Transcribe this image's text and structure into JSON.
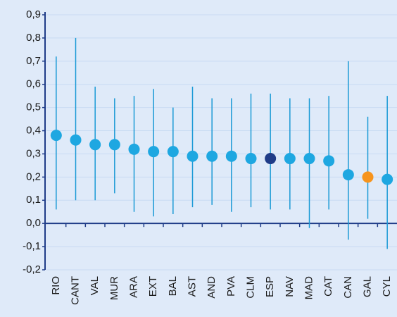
{
  "chart_data": {
    "type": "errorbar",
    "categories": [
      "RIO",
      "CANT",
      "VAL",
      "MUR",
      "ARA",
      "EXT",
      "BAL",
      "AST",
      "AND",
      "PVA",
      "CLM",
      "ESP",
      "NAV",
      "MAD",
      "CAT",
      "CAN",
      "GAL",
      "CYL"
    ],
    "values": [
      0.38,
      0.36,
      0.34,
      0.34,
      0.32,
      0.31,
      0.31,
      0.29,
      0.29,
      0.29,
      0.28,
      0.28,
      0.28,
      0.28,
      0.27,
      0.21,
      0.2,
      0.19
    ],
    "lows": [
      0.06,
      0.1,
      0.1,
      0.13,
      0.05,
      0.03,
      0.04,
      0.07,
      0.08,
      0.05,
      0.07,
      0.06,
      0.06,
      -0.02,
      0.06,
      -0.07,
      0.02,
      -0.11
    ],
    "highs": [
      0.72,
      0.8,
      0.59,
      0.54,
      0.55,
      0.58,
      0.5,
      0.59,
      0.54,
      0.54,
      0.56,
      0.56,
      0.54,
      0.54,
      0.55,
      0.7,
      0.46,
      0.55
    ],
    "colors": [
      "#1ea7e1",
      "#1ea7e1",
      "#1ea7e1",
      "#1ea7e1",
      "#1ea7e1",
      "#1ea7e1",
      "#1ea7e1",
      "#1ea7e1",
      "#1ea7e1",
      "#1ea7e1",
      "#1ea7e1",
      "#1f3c88",
      "#1ea7e1",
      "#1ea7e1",
      "#1ea7e1",
      "#1ea7e1",
      "#f7941d",
      "#1ea7e1"
    ],
    "range_color": "#1b9ad6",
    "ylim": [
      -0.2,
      0.9
    ],
    "yticks": [
      {
        "value": -0.2,
        "label": "-0,2"
      },
      {
        "value": -0.1,
        "label": "-0,1"
      },
      {
        "value": 0,
        "label": "0,0"
      },
      {
        "value": 0.1,
        "label": "0,1"
      },
      {
        "value": 0.2,
        "label": "0,2"
      },
      {
        "value": 0.3,
        "label": "0,3"
      },
      {
        "value": 0.4,
        "label": "0,4"
      },
      {
        "value": 0.5,
        "label": "0,5"
      },
      {
        "value": 0.6,
        "label": "0,6"
      },
      {
        "value": 0.7,
        "label": "0,7"
      },
      {
        "value": 0.8,
        "label": "0,8"
      },
      {
        "value": 0.9,
        "label": "0,9"
      }
    ],
    "grid": true
  }
}
